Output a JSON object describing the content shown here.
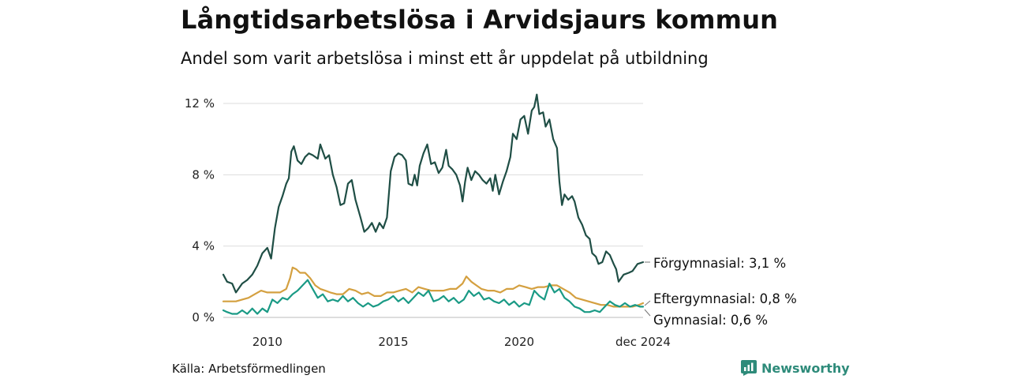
{
  "title": "Långtidsarbetslösa i Arvidsjaurs kommun",
  "subtitle": "Andel som varit arbetslösa i minst ett år uppdelat på utbildning",
  "source": "Källa: Arbetsförmedlingen",
  "brand": "Newsworthy",
  "colors": {
    "accent": "#2e8b7a",
    "grid": "#dddddd",
    "text": "#111111"
  },
  "chart_data": {
    "type": "line",
    "title": "Långtidsarbetslösa i Arvidsjaurs kommun",
    "xlabel": "",
    "ylabel": "",
    "xlim": [
      2008.25,
      2024.92
    ],
    "ylim": [
      0,
      12
    ],
    "grid": true,
    "yticks": [
      {
        "value": 0,
        "label": "0 %"
      },
      {
        "value": 4,
        "label": "4 %"
      },
      {
        "value": 8,
        "label": "8 %"
      },
      {
        "value": 12,
        "label": "12 %"
      }
    ],
    "xticks": [
      {
        "value": 2010,
        "label": "2010"
      },
      {
        "value": 2015,
        "label": "2015"
      },
      {
        "value": 2020,
        "label": "2020"
      },
      {
        "value": 2024.92,
        "label": "dec 2024"
      }
    ],
    "series": [
      {
        "name": "Förgymnasial",
        "label": "Förgymnasial: 3,1 %",
        "color": "#1f4e45",
        "points": [
          [
            2008.25,
            2.4
          ],
          [
            2008.4,
            2.0
          ],
          [
            2008.6,
            1.9
          ],
          [
            2008.75,
            1.4
          ],
          [
            2009.0,
            1.9
          ],
          [
            2009.2,
            2.1
          ],
          [
            2009.4,
            2.4
          ],
          [
            2009.6,
            2.9
          ],
          [
            2009.8,
            3.6
          ],
          [
            2010.0,
            3.9
          ],
          [
            2010.15,
            3.3
          ],
          [
            2010.3,
            5.0
          ],
          [
            2010.45,
            6.2
          ],
          [
            2010.6,
            6.8
          ],
          [
            2010.75,
            7.5
          ],
          [
            2010.85,
            7.8
          ],
          [
            2010.95,
            9.3
          ],
          [
            2011.05,
            9.6
          ],
          [
            2011.2,
            8.8
          ],
          [
            2011.35,
            8.6
          ],
          [
            2011.5,
            9.0
          ],
          [
            2011.65,
            9.2
          ],
          [
            2011.8,
            9.1
          ],
          [
            2012.0,
            8.9
          ],
          [
            2012.1,
            9.7
          ],
          [
            2012.3,
            8.9
          ],
          [
            2012.45,
            9.1
          ],
          [
            2012.6,
            8.0
          ],
          [
            2012.75,
            7.3
          ],
          [
            2012.9,
            6.3
          ],
          [
            2013.05,
            6.4
          ],
          [
            2013.2,
            7.5
          ],
          [
            2013.35,
            7.7
          ],
          [
            2013.5,
            6.6
          ],
          [
            2013.7,
            5.6
          ],
          [
            2013.85,
            4.8
          ],
          [
            2014.0,
            5.0
          ],
          [
            2014.15,
            5.3
          ],
          [
            2014.3,
            4.8
          ],
          [
            2014.45,
            5.3
          ],
          [
            2014.6,
            5.0
          ],
          [
            2014.75,
            5.6
          ],
          [
            2014.9,
            8.2
          ],
          [
            2015.05,
            9.0
          ],
          [
            2015.2,
            9.2
          ],
          [
            2015.35,
            9.1
          ],
          [
            2015.5,
            8.8
          ],
          [
            2015.6,
            7.5
          ],
          [
            2015.75,
            7.4
          ],
          [
            2015.85,
            8.0
          ],
          [
            2015.95,
            7.4
          ],
          [
            2016.05,
            8.5
          ],
          [
            2016.2,
            9.2
          ],
          [
            2016.35,
            9.7
          ],
          [
            2016.5,
            8.6
          ],
          [
            2016.65,
            8.7
          ],
          [
            2016.8,
            8.1
          ],
          [
            2016.95,
            8.4
          ],
          [
            2017.1,
            9.4
          ],
          [
            2017.2,
            8.5
          ],
          [
            2017.35,
            8.3
          ],
          [
            2017.5,
            8.0
          ],
          [
            2017.65,
            7.4
          ],
          [
            2017.75,
            6.5
          ],
          [
            2017.85,
            7.6
          ],
          [
            2017.95,
            8.4
          ],
          [
            2018.1,
            7.7
          ],
          [
            2018.25,
            8.2
          ],
          [
            2018.4,
            8.0
          ],
          [
            2018.55,
            7.7
          ],
          [
            2018.7,
            7.5
          ],
          [
            2018.85,
            7.8
          ],
          [
            2018.95,
            7.1
          ],
          [
            2019.05,
            8.0
          ],
          [
            2019.2,
            6.9
          ],
          [
            2019.35,
            7.6
          ],
          [
            2019.5,
            8.2
          ],
          [
            2019.65,
            9.0
          ],
          [
            2019.75,
            10.3
          ],
          [
            2019.9,
            10.0
          ],
          [
            2020.05,
            11.1
          ],
          [
            2020.2,
            11.3
          ],
          [
            2020.35,
            10.3
          ],
          [
            2020.5,
            11.6
          ],
          [
            2020.6,
            11.8
          ],
          [
            2020.7,
            12.5
          ],
          [
            2020.8,
            11.4
          ],
          [
            2020.95,
            11.5
          ],
          [
            2021.05,
            10.7
          ],
          [
            2021.2,
            11.1
          ],
          [
            2021.35,
            10.0
          ],
          [
            2021.5,
            9.5
          ],
          [
            2021.6,
            7.6
          ],
          [
            2021.7,
            6.3
          ],
          [
            2021.8,
            6.9
          ],
          [
            2021.95,
            6.6
          ],
          [
            2022.1,
            6.8
          ],
          [
            2022.2,
            6.5
          ],
          [
            2022.35,
            5.6
          ],
          [
            2022.5,
            5.2
          ],
          [
            2022.65,
            4.6
          ],
          [
            2022.8,
            4.4
          ],
          [
            2022.9,
            3.6
          ],
          [
            2023.05,
            3.4
          ],
          [
            2023.15,
            3.0
          ],
          [
            2023.3,
            3.1
          ],
          [
            2023.45,
            3.7
          ],
          [
            2023.6,
            3.5
          ],
          [
            2023.75,
            3.0
          ],
          [
            2023.85,
            2.7
          ],
          [
            2023.95,
            2.0
          ],
          [
            2024.15,
            2.4
          ],
          [
            2024.35,
            2.5
          ],
          [
            2024.5,
            2.6
          ],
          [
            2024.7,
            3.0
          ],
          [
            2024.92,
            3.1
          ]
        ]
      },
      {
        "name": "Eftergymnasial",
        "label": "Eftergymnasial: 0,8 %",
        "color": "#d4a040",
        "points": [
          [
            2008.25,
            0.9
          ],
          [
            2008.5,
            0.9
          ],
          [
            2008.75,
            0.9
          ],
          [
            2009.0,
            1.0
          ],
          [
            2009.25,
            1.1
          ],
          [
            2009.5,
            1.3
          ],
          [
            2009.75,
            1.5
          ],
          [
            2010.0,
            1.4
          ],
          [
            2010.25,
            1.4
          ],
          [
            2010.5,
            1.4
          ],
          [
            2010.75,
            1.6
          ],
          [
            2010.9,
            2.2
          ],
          [
            2011.0,
            2.8
          ],
          [
            2011.15,
            2.7
          ],
          [
            2011.3,
            2.5
          ],
          [
            2011.5,
            2.5
          ],
          [
            2011.7,
            2.2
          ],
          [
            2011.9,
            1.8
          ],
          [
            2012.1,
            1.6
          ],
          [
            2012.3,
            1.5
          ],
          [
            2012.5,
            1.4
          ],
          [
            2012.75,
            1.3
          ],
          [
            2013.0,
            1.3
          ],
          [
            2013.25,
            1.6
          ],
          [
            2013.5,
            1.5
          ],
          [
            2013.75,
            1.3
          ],
          [
            2014.0,
            1.4
          ],
          [
            2014.25,
            1.2
          ],
          [
            2014.5,
            1.2
          ],
          [
            2014.75,
            1.4
          ],
          [
            2015.0,
            1.4
          ],
          [
            2015.25,
            1.5
          ],
          [
            2015.5,
            1.6
          ],
          [
            2015.75,
            1.4
          ],
          [
            2016.0,
            1.7
          ],
          [
            2016.25,
            1.6
          ],
          [
            2016.5,
            1.5
          ],
          [
            2016.75,
            1.5
          ],
          [
            2017.0,
            1.5
          ],
          [
            2017.25,
            1.6
          ],
          [
            2017.5,
            1.6
          ],
          [
            2017.75,
            1.9
          ],
          [
            2017.9,
            2.3
          ],
          [
            2018.1,
            2.0
          ],
          [
            2018.3,
            1.8
          ],
          [
            2018.5,
            1.6
          ],
          [
            2018.75,
            1.5
          ],
          [
            2019.0,
            1.5
          ],
          [
            2019.25,
            1.4
          ],
          [
            2019.5,
            1.6
          ],
          [
            2019.75,
            1.6
          ],
          [
            2020.0,
            1.8
          ],
          [
            2020.25,
            1.7
          ],
          [
            2020.5,
            1.6
          ],
          [
            2020.75,
            1.7
          ],
          [
            2021.0,
            1.7
          ],
          [
            2021.25,
            1.8
          ],
          [
            2021.5,
            1.8
          ],
          [
            2021.75,
            1.6
          ],
          [
            2022.0,
            1.4
          ],
          [
            2022.25,
            1.1
          ],
          [
            2022.5,
            1.0
          ],
          [
            2022.75,
            0.9
          ],
          [
            2023.0,
            0.8
          ],
          [
            2023.25,
            0.7
          ],
          [
            2023.5,
            0.7
          ],
          [
            2023.75,
            0.6
          ],
          [
            2024.0,
            0.6
          ],
          [
            2024.25,
            0.6
          ],
          [
            2024.5,
            0.6
          ],
          [
            2024.75,
            0.7
          ],
          [
            2024.92,
            0.8
          ]
        ]
      },
      {
        "name": "Gymnasial",
        "label": "Gymnasial: 0,6 %",
        "color": "#1a9a85",
        "points": [
          [
            2008.25,
            0.4
          ],
          [
            2008.4,
            0.3
          ],
          [
            2008.6,
            0.2
          ],
          [
            2008.8,
            0.2
          ],
          [
            2009.0,
            0.4
          ],
          [
            2009.2,
            0.2
          ],
          [
            2009.4,
            0.5
          ],
          [
            2009.6,
            0.2
          ],
          [
            2009.8,
            0.5
          ],
          [
            2010.0,
            0.3
          ],
          [
            2010.2,
            1.0
          ],
          [
            2010.4,
            0.8
          ],
          [
            2010.6,
            1.1
          ],
          [
            2010.8,
            1.0
          ],
          [
            2011.0,
            1.3
          ],
          [
            2011.2,
            1.5
          ],
          [
            2011.4,
            1.8
          ],
          [
            2011.6,
            2.1
          ],
          [
            2011.8,
            1.6
          ],
          [
            2012.0,
            1.1
          ],
          [
            2012.2,
            1.3
          ],
          [
            2012.4,
            0.9
          ],
          [
            2012.6,
            1.0
          ],
          [
            2012.8,
            0.9
          ],
          [
            2013.0,
            1.2
          ],
          [
            2013.2,
            0.9
          ],
          [
            2013.4,
            1.1
          ],
          [
            2013.6,
            0.8
          ],
          [
            2013.8,
            0.6
          ],
          [
            2014.0,
            0.8
          ],
          [
            2014.2,
            0.6
          ],
          [
            2014.4,
            0.7
          ],
          [
            2014.6,
            0.9
          ],
          [
            2014.8,
            1.0
          ],
          [
            2015.0,
            1.2
          ],
          [
            2015.2,
            0.9
          ],
          [
            2015.4,
            1.1
          ],
          [
            2015.6,
            0.8
          ],
          [
            2015.8,
            1.1
          ],
          [
            2016.0,
            1.4
          ],
          [
            2016.2,
            1.2
          ],
          [
            2016.4,
            1.5
          ],
          [
            2016.6,
            0.9
          ],
          [
            2016.8,
            1.0
          ],
          [
            2017.0,
            1.2
          ],
          [
            2017.2,
            0.9
          ],
          [
            2017.4,
            1.1
          ],
          [
            2017.6,
            0.8
          ],
          [
            2017.8,
            1.0
          ],
          [
            2018.0,
            1.5
          ],
          [
            2018.2,
            1.2
          ],
          [
            2018.4,
            1.4
          ],
          [
            2018.6,
            1.0
          ],
          [
            2018.8,
            1.1
          ],
          [
            2019.0,
            0.9
          ],
          [
            2019.2,
            0.8
          ],
          [
            2019.4,
            1.0
          ],
          [
            2019.6,
            0.7
          ],
          [
            2019.8,
            0.9
          ],
          [
            2020.0,
            0.6
          ],
          [
            2020.2,
            0.8
          ],
          [
            2020.4,
            0.7
          ],
          [
            2020.6,
            1.5
          ],
          [
            2020.8,
            1.2
          ],
          [
            2021.0,
            1.0
          ],
          [
            2021.2,
            1.9
          ],
          [
            2021.4,
            1.4
          ],
          [
            2021.6,
            1.6
          ],
          [
            2021.8,
            1.1
          ],
          [
            2022.0,
            0.9
          ],
          [
            2022.2,
            0.6
          ],
          [
            2022.4,
            0.5
          ],
          [
            2022.6,
            0.3
          ],
          [
            2022.8,
            0.3
          ],
          [
            2023.0,
            0.4
          ],
          [
            2023.2,
            0.3
          ],
          [
            2023.4,
            0.6
          ],
          [
            2023.6,
            0.9
          ],
          [
            2023.8,
            0.7
          ],
          [
            2024.0,
            0.6
          ],
          [
            2024.2,
            0.8
          ],
          [
            2024.4,
            0.6
          ],
          [
            2024.6,
            0.7
          ],
          [
            2024.8,
            0.6
          ],
          [
            2024.92,
            0.6
          ]
        ]
      }
    ]
  }
}
